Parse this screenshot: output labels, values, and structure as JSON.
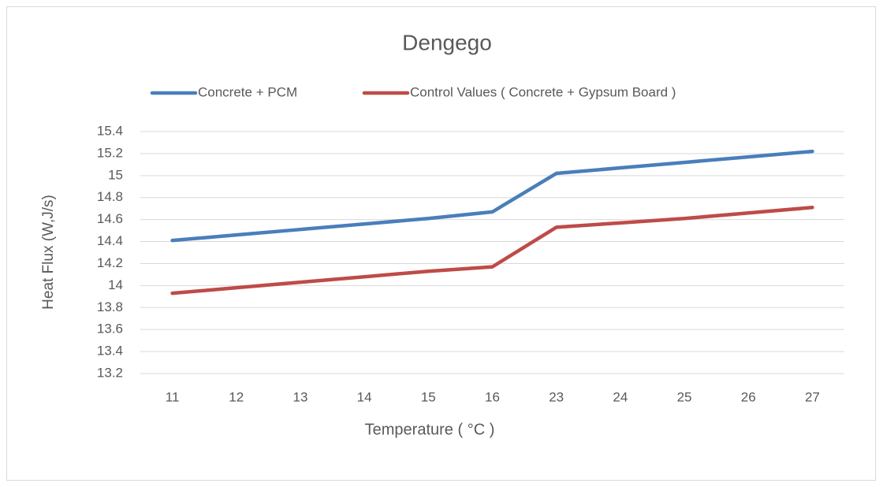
{
  "chart_data": {
    "type": "line",
    "title": "Dengego",
    "x_label": "Temperature ( °C )",
    "y_label": "Heat Flux (W,J/s)",
    "categories": [
      "11",
      "12",
      "13",
      "14",
      "15",
      "16",
      "23",
      "24",
      "25",
      "26",
      "27"
    ],
    "series": [
      {
        "name": "Concrete + PCM",
        "color": "#4a7ebb",
        "values": [
          14.41,
          14.46,
          14.51,
          14.56,
          14.61,
          14.67,
          15.02,
          15.07,
          15.12,
          15.17,
          15.22
        ]
      },
      {
        "name": "Control Values ( Concrete + Gypsum Board )",
        "color": "#be4b48",
        "values": [
          13.93,
          13.98,
          14.03,
          14.08,
          14.13,
          14.17,
          14.53,
          14.57,
          14.61,
          14.66,
          14.71
        ]
      }
    ],
    "ylim": [
      13.2,
      15.4
    ],
    "yticks": [
      13.2,
      13.4,
      13.6,
      13.8,
      14,
      14.2,
      14.4,
      14.6,
      14.8,
      15,
      15.2,
      15.4
    ],
    "grid": true,
    "legend": "top"
  }
}
